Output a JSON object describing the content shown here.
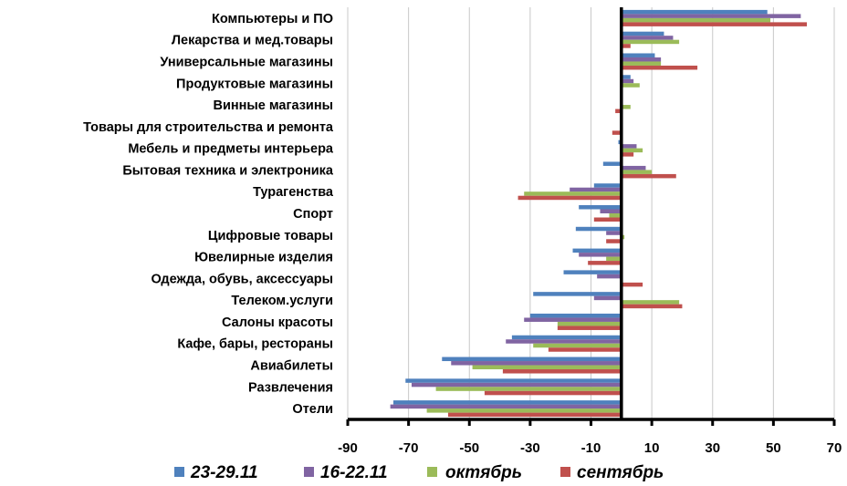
{
  "chart_data": {
    "type": "bar",
    "orientation": "horizontal",
    "categories": [
      "Компьютеры и ПО",
      "Лекарства и мед.товары",
      "Универсальные магазины",
      "Продуктовые магазины",
      "Винные магазины",
      "Товары для строительства и ремонта",
      "Мебель и предметы интерьера",
      "Бытовая техника и электроника",
      "Турагенства",
      "Спорт",
      "Цифровые товары",
      "Ювелирные изделия",
      "Одежда, обувь, аксессуары",
      "Телеком.услуги",
      "Салоны красоты",
      "Кафе, бары, рестораны",
      "Авиабилеты",
      "Развлечения",
      "Отели"
    ],
    "series": [
      {
        "name": "23-29.11",
        "color": "#4F81BD",
        "values": [
          48,
          14,
          11,
          3,
          0,
          0,
          -1,
          -6,
          -9,
          -14,
          -15,
          -16,
          -19,
          -29,
          -30,
          -36,
          -59,
          -71,
          -75
        ]
      },
      {
        "name": "16-22.11",
        "color": "#8064A2",
        "values": [
          59,
          17,
          13,
          4,
          0,
          0,
          5,
          8,
          -17,
          -7,
          -5,
          -14,
          -8,
          -9,
          -32,
          -38,
          -56,
          -69,
          -76
        ]
      },
      {
        "name": "октябрь",
        "color": "#9BBB59",
        "values": [
          49,
          19,
          13,
          6,
          3,
          0,
          7,
          10,
          -32,
          -4,
          1,
          -5,
          0,
          19,
          -21,
          -29,
          -49,
          -61,
          -64
        ]
      },
      {
        "name": "сентябрь",
        "color": "#C0504D",
        "values": [
          61,
          3,
          25,
          0,
          -2,
          -3,
          4,
          18,
          -34,
          -9,
          -5,
          -11,
          7,
          20,
          -21,
          -24,
          -39,
          -45,
          -57
        ]
      }
    ],
    "xaxis_ticks": [
      "-90",
      "-70",
      "-50",
      "-30",
      "-10",
      "10",
      "30",
      "50",
      "70"
    ],
    "xlim": [
      -90,
      70
    ],
    "grid": "vertical",
    "legend_position": "bottom"
  }
}
